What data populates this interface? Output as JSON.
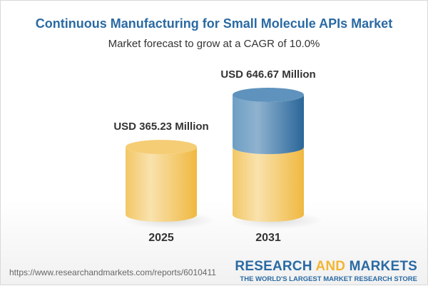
{
  "chart_data": {
    "type": "bar",
    "style": "3d-cylinder",
    "title": "Continuous Manufacturing for Small Molecule APIs Market",
    "subtitle": "Market forecast to grow at a CAGR of 10.0%",
    "categories": [
      "2025",
      "2031"
    ],
    "values": [
      365.23,
      646.67
    ],
    "data_labels": [
      "USD 365.23 Million",
      "USD 646.67 Million"
    ],
    "unit": "USD Million",
    "colors": {
      "base": "#f2c35a",
      "growth": "#3f7fb0",
      "title": "#2a6aa3"
    },
    "grid": false
  },
  "footer": {
    "url": "https://www.researchandmarkets.com/reports/6010411",
    "logo_text": "RESEARCH AND MARKETS",
    "logo_part1": "RESEARCH ",
    "logo_part2": "AND",
    "logo_part3": " MARKETS",
    "tagline": "THE WORLD'S LARGEST MARKET RESEARCH STORE"
  }
}
